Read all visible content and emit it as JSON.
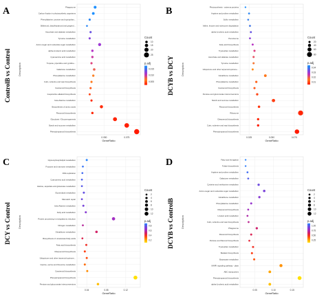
{
  "chart_data": [
    {
      "type": "scatter",
      "panel_letter": "A",
      "side_title": "ControlB vs Control",
      "ylabel": "Description",
      "xlabel": "GeneRatio",
      "xlim": [
        0.02,
        0.09
      ],
      "x_ticks": [
        0.05,
        0.075
      ],
      "x_tick_labels": [
        "0.050",
        "0.075"
      ],
      "size_legend": {
        "title": "Count",
        "labels": [
          "10",
          "15",
          "20",
          "25"
        ],
        "values": [
          10,
          15,
          20,
          25
        ]
      },
      "color_legend": {
        "title": "p.adj",
        "labels": [
          "0.015",
          "0.010",
          "0.005"
        ]
      },
      "categories": [
        "Phagosome",
        "Carbon fixation in photosynthetic organisms",
        "Phenylalanine, tyrosine and tryptophan...",
        "Stilbenoid, diarylheptanoid and gingerol...",
        "Ascorbate and aldarate metabolism",
        "Tyrosine metabolism",
        "Amino sugar and nucleotide sugar metabolism",
        "alpha-Linolenic acid metabolism",
        "Cyanoamino acid metabolism",
        "Tropane, piperidine and pyridine...",
        "Galactose metabolism",
        "Phenylalanine metabolism",
        "Cutin, suberine and wax biosynthesis",
        "Carotenoid biosynthesis",
        "Isoquinoline alkaloid biosynthesis",
        "beta-Alanine metabolism",
        "Biosynthesis of amino acids",
        "Flavonoid biosynthesis",
        "Glycolysis / Gluconeogenesis",
        "Starch and sucrose metabolism",
        "Phenylpropanoid biosynthesis"
      ],
      "points": [
        {
          "x": 0.04,
          "count": 12,
          "padj": 0.016
        },
        {
          "x": 0.038,
          "count": 11,
          "padj": 0.016
        },
        {
          "x": 0.034,
          "count": 8,
          "padj": 0.015
        },
        {
          "x": 0.031,
          "count": 6,
          "padj": 0.015
        },
        {
          "x": 0.035,
          "count": 8,
          "padj": 0.012
        },
        {
          "x": 0.034,
          "count": 8,
          "padj": 0.011
        },
        {
          "x": 0.045,
          "count": 13,
          "padj": 0.01
        },
        {
          "x": 0.037,
          "count": 9,
          "padj": 0.009
        },
        {
          "x": 0.037,
          "count": 9,
          "padj": 0.008
        },
        {
          "x": 0.036,
          "count": 8,
          "padj": 0.007
        },
        {
          "x": 0.039,
          "count": 10,
          "padj": 0.006
        },
        {
          "x": 0.038,
          "count": 9,
          "padj": 0.005
        },
        {
          "x": 0.036,
          "count": 8,
          "padj": 0.004
        },
        {
          "x": 0.035,
          "count": 8,
          "padj": 0.003
        },
        {
          "x": 0.034,
          "count": 7,
          "padj": 0.002
        },
        {
          "x": 0.036,
          "count": 8,
          "padj": 0.001
        },
        {
          "x": 0.047,
          "count": 14,
          "padj": 0.001
        },
        {
          "x": 0.037,
          "count": 9,
          "padj": 0.0008
        },
        {
          "x": 0.062,
          "count": 19,
          "padj": 0.0006
        },
        {
          "x": 0.075,
          "count": 23,
          "padj": 0.0004
        },
        {
          "x": 0.086,
          "count": 26,
          "padj": 0.0002
        }
      ]
    },
    {
      "type": "scatter",
      "panel_letter": "B",
      "side_title": "DCYB vs DCY",
      "ylabel": "Description",
      "xlabel": "GeneRatio",
      "xlim": [
        0.015,
        0.085
      ],
      "x_ticks": [
        0.025,
        0.05,
        0.075
      ],
      "x_tick_labels": [
        "0.025",
        "0.050",
        "0.075"
      ],
      "size_legend": {
        "title": "Count",
        "labels": [
          "20",
          "40",
          "60",
          "80"
        ],
        "values": [
          20,
          40,
          60,
          80
        ]
      },
      "color_legend": {
        "title": "p.adj",
        "labels": [
          "0.04",
          "0.03",
          "0.02",
          "0.01"
        ]
      },
      "categories": [
        "Photosynthesis - antenna proteins",
        "Arginine and proline metabolism",
        "Sulfur metabolism",
        "Valine, leucine and isoleucine degradation",
        "alpha-Linolenic acid metabolism",
        "Peroxisome",
        "Fatty acid biosynthesis",
        "Tryptophan metabolism",
        "Ascorbate and aldarate metabolism",
        "Tyrosine metabolism",
        "Ubiquinone and other terpenoid-quinone...",
        "Glutathione metabolism",
        "Phenylalanine metabolism",
        "Carotenoid biosynthesis",
        "Pentose and glucuronate interconversions",
        "Starch and sucrose metabolism",
        "Flavonoid biosynthesis",
        "Ribosome",
        "Diterpenoid biosynthesis",
        "Cutin, suberine and wax biosynthesis",
        "Phenylpropanoid biosynthesis"
      ],
      "points": [
        {
          "x": 0.021,
          "count": 8,
          "padj": 0.045
        },
        {
          "x": 0.025,
          "count": 14,
          "padj": 0.042
        },
        {
          "x": 0.024,
          "count": 12,
          "padj": 0.04
        },
        {
          "x": 0.026,
          "count": 15,
          "padj": 0.038
        },
        {
          "x": 0.027,
          "count": 16,
          "padj": 0.034
        },
        {
          "x": 0.026,
          "count": 15,
          "padj": 0.03
        },
        {
          "x": 0.029,
          "count": 18,
          "padj": 0.025
        },
        {
          "x": 0.031,
          "count": 20,
          "padj": 0.02
        },
        {
          "x": 0.03,
          "count": 19,
          "padj": 0.018
        },
        {
          "x": 0.03,
          "count": 19,
          "padj": 0.015
        },
        {
          "x": 0.029,
          "count": 18,
          "padj": 0.013
        },
        {
          "x": 0.043,
          "count": 32,
          "padj": 0.011
        },
        {
          "x": 0.033,
          "count": 22,
          "padj": 0.009
        },
        {
          "x": 0.031,
          "count": 20,
          "padj": 0.008
        },
        {
          "x": 0.034,
          "count": 23,
          "padj": 0.006
        },
        {
          "x": 0.052,
          "count": 45,
          "padj": 0.005
        },
        {
          "x": 0.036,
          "count": 26,
          "padj": 0.004
        },
        {
          "x": 0.082,
          "count": 80,
          "padj": 0.002
        },
        {
          "x": 0.035,
          "count": 24,
          "padj": 0.002
        },
        {
          "x": 0.035,
          "count": 24,
          "padj": 0.001
        },
        {
          "x": 0.078,
          "count": 70,
          "padj": 0.0005
        }
      ]
    },
    {
      "type": "scatter",
      "panel_letter": "C",
      "side_title": "DCY vs Control",
      "ylabel": "Description",
      "xlabel": "GeneRatio",
      "xlim": [
        0.02,
        0.15
      ],
      "x_ticks": [
        0.04,
        0.08,
        0.12
      ],
      "x_tick_labels": [
        "0.04",
        "0.08",
        "0.12"
      ],
      "size_legend": {
        "title": "Count",
        "labels": [
          "2",
          "4",
          "6",
          "8",
          "10",
          "12"
        ],
        "values": [
          2,
          4,
          6,
          8,
          10,
          12
        ]
      },
      "color_legend": {
        "title": "p.adj",
        "labels": [
          "0.8",
          "0.6",
          "0.4",
          "0.2"
        ]
      },
      "categories": [
        "Glycerophospholipid metabolism",
        "Fructose and mannose metabolism",
        "DNA replication",
        "Cyanoamino acid metabolism",
        "Alanine, aspartate and glutamate metabolism",
        "Glycerolipid metabolism",
        "Mismatch repair",
        "beta-Alanine metabolism",
        "Fatty acid metabolism",
        "Protein processing in endoplasmic reticulum",
        "Nitrogen metabolism",
        "Glutathione metabolism",
        "Biosynthesis of unsaturated fatty acids",
        "Fatty acid biosynthesis",
        "Diterpenoid biosynthesis",
        "Ubiquinone and other terpenoid-quinone...",
        "Glycine, serine and threonine metabolism",
        "Carotenoid biosynthesis",
        "Phenylpropanoid biosynthesis",
        "Pentose and glucuronate interconversions"
      ],
      "points": [
        {
          "x": 0.04,
          "count": 3,
          "padj": 0.85
        },
        {
          "x": 0.032,
          "count": 2,
          "padj": 0.82
        },
        {
          "x": 0.031,
          "count": 2,
          "padj": 0.8
        },
        {
          "x": 0.03,
          "count": 2,
          "padj": 0.78
        },
        {
          "x": 0.03,
          "count": 2,
          "padj": 0.76
        },
        {
          "x": 0.034,
          "count": 3,
          "padj": 0.74
        },
        {
          "x": 0.03,
          "count": 2,
          "padj": 0.72
        },
        {
          "x": 0.033,
          "count": 3,
          "padj": 0.7
        },
        {
          "x": 0.038,
          "count": 3,
          "padj": 0.66
        },
        {
          "x": 0.095,
          "count": 9,
          "padj": 0.6
        },
        {
          "x": 0.032,
          "count": 2,
          "padj": 0.55
        },
        {
          "x": 0.06,
          "count": 5,
          "padj": 0.48
        },
        {
          "x": 0.031,
          "count": 2,
          "padj": 0.45
        },
        {
          "x": 0.039,
          "count": 3,
          "padj": 0.4
        },
        {
          "x": 0.036,
          "count": 3,
          "padj": 0.36
        },
        {
          "x": 0.04,
          "count": 3,
          "padj": 0.34
        },
        {
          "x": 0.036,
          "count": 3,
          "padj": 0.3
        },
        {
          "x": 0.041,
          "count": 3,
          "padj": 0.26
        },
        {
          "x": 0.14,
          "count": 12,
          "padj": 0.12
        },
        {
          "x": 0.063,
          "count": 5,
          "padj": 0.18
        }
      ]
    },
    {
      "type": "scatter",
      "panel_letter": "D",
      "side_title": "DCYB vs ControlB",
      "ylabel": "Description",
      "xlabel": "GeneRatio",
      "xlim": [
        0.01,
        0.18
      ],
      "x_ticks": [
        0.05,
        0.1,
        0.15
      ],
      "x_tick_labels": [
        "0.05",
        "0.10",
        "0.15"
      ],
      "size_legend": {
        "title": "Count",
        "labels": [
          "2",
          "4",
          "6",
          "8",
          "10",
          "12"
        ],
        "values": [
          2,
          4,
          6,
          8,
          10,
          12
        ]
      },
      "color_legend": {
        "title": "p.adj",
        "labels": [
          "1.00",
          "0.75",
          "0.50",
          "0.25"
        ]
      },
      "categories": [
        "Fatty acid elongation",
        "Folate biosynthesis",
        "Arginine and proline metabolism",
        "Galactose metabolism",
        "Cysteine and methionine metabolism",
        "Amino sugar and nucleotide sugar metabolism",
        "Glutathione metabolism",
        "Phenylalanine metabolism",
        "Diterpenoid biosynthesis",
        "Linoleic acid metabolism",
        "Cutin, suberine and wax biosynthesis",
        "Phagosome",
        "Flavonoid biosynthesis",
        "Pentose and flavonol biosynthesis",
        "Tryptophan metabolism",
        "Betalain biosynthesis",
        "Butanoate metabolism",
        "MAPK signaling pathway - plant",
        "ABC transporters",
        "Phenylpropanoid biosynthesis",
        "alpha-Linolenic acid metabolism"
      ],
      "points": [
        {
          "x": 0.025,
          "count": 1,
          "padj": 0.98
        },
        {
          "x": 0.025,
          "count": 1,
          "padj": 0.96
        },
        {
          "x": 0.03,
          "count": 2,
          "padj": 0.92
        },
        {
          "x": 0.032,
          "count": 2,
          "padj": 0.88
        },
        {
          "x": 0.06,
          "count": 4,
          "padj": 0.82
        },
        {
          "x": 0.075,
          "count": 5,
          "padj": 0.78
        },
        {
          "x": 0.062,
          "count": 4,
          "padj": 0.74
        },
        {
          "x": 0.04,
          "count": 3,
          "padj": 0.7
        },
        {
          "x": 0.032,
          "count": 2,
          "padj": 0.66
        },
        {
          "x": 0.03,
          "count": 2,
          "padj": 0.62
        },
        {
          "x": 0.033,
          "count": 2,
          "padj": 0.58
        },
        {
          "x": 0.055,
          "count": 4,
          "padj": 0.52
        },
        {
          "x": 0.04,
          "count": 3,
          "padj": 0.48
        },
        {
          "x": 0.035,
          "count": 2,
          "padj": 0.44
        },
        {
          "x": 0.045,
          "count": 3,
          "padj": 0.4
        },
        {
          "x": 0.042,
          "count": 3,
          "padj": 0.36
        },
        {
          "x": 0.048,
          "count": 3,
          "padj": 0.32
        },
        {
          "x": 0.12,
          "count": 8,
          "padj": 0.22
        },
        {
          "x": 0.09,
          "count": 6,
          "padj": 0.18
        },
        {
          "x": 0.17,
          "count": 12,
          "padj": 0.05
        },
        {
          "x": 0.09,
          "count": 6,
          "padj": 0.12
        }
      ]
    }
  ],
  "colors": {
    "gradient": [
      "#1e90ff",
      "#4169e1",
      "#8a2be2",
      "#b040e0",
      "#d05050",
      "#ff4020",
      "#ff8c00",
      "#ffd700",
      "#ffff66"
    ],
    "grid": "#ebebeb"
  }
}
